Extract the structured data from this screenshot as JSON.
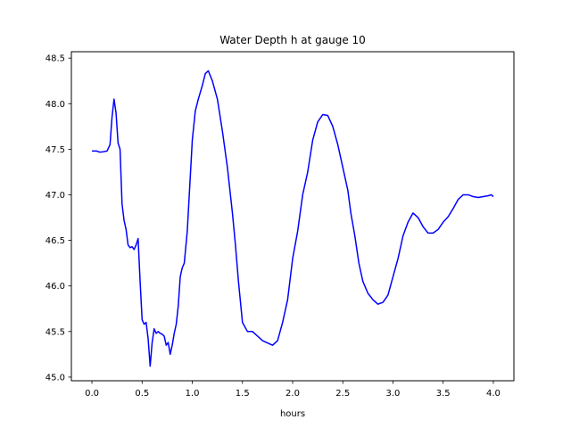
{
  "chart_data": {
    "type": "line",
    "title": "Water Depth h at gauge 10",
    "xlabel": "hours",
    "ylabel": "",
    "xlim": [
      -0.205,
      4.205
    ],
    "ylim": [
      44.96,
      48.57
    ],
    "x_ticks": [
      "0.0",
      "0.5",
      "1.0",
      "1.5",
      "2.0",
      "2.5",
      "3.0",
      "3.5",
      "4.0"
    ],
    "y_ticks": [
      "45.0",
      "45.5",
      "46.0",
      "46.5",
      "47.0",
      "47.5",
      "48.0",
      "48.5"
    ],
    "grid": false,
    "series": [
      {
        "color": "#0000ff",
        "x": [
          0.0,
          0.05,
          0.07,
          0.1,
          0.15,
          0.18,
          0.2,
          0.22,
          0.24,
          0.26,
          0.28,
          0.3,
          0.32,
          0.34,
          0.36,
          0.38,
          0.4,
          0.42,
          0.44,
          0.46,
          0.48,
          0.5,
          0.52,
          0.54,
          0.56,
          0.58,
          0.6,
          0.62,
          0.64,
          0.66,
          0.68,
          0.7,
          0.72,
          0.74,
          0.76,
          0.78,
          0.8,
          0.82,
          0.84,
          0.86,
          0.88,
          0.9,
          0.92,
          0.95,
          0.98,
          1.0,
          1.03,
          1.06,
          1.1,
          1.13,
          1.16,
          1.2,
          1.25,
          1.3,
          1.35,
          1.4,
          1.43,
          1.46,
          1.5,
          1.55,
          1.6,
          1.7,
          1.8,
          1.85,
          1.9,
          1.95,
          2.0,
          2.05,
          2.1,
          2.15,
          2.2,
          2.25,
          2.3,
          2.35,
          2.4,
          2.45,
          2.5,
          2.55,
          2.58,
          2.62,
          2.66,
          2.7,
          2.75,
          2.8,
          2.85,
          2.9,
          2.95,
          3.0,
          3.05,
          3.1,
          3.15,
          3.2,
          3.25,
          3.3,
          3.35,
          3.4,
          3.45,
          3.5,
          3.55,
          3.6,
          3.65,
          3.7,
          3.75,
          3.8,
          3.85,
          3.9,
          3.95,
          3.98,
          4.0
        ],
        "y": [
          47.48,
          47.48,
          47.47,
          47.47,
          47.48,
          47.55,
          47.85,
          48.05,
          47.9,
          47.57,
          47.5,
          46.9,
          46.72,
          46.62,
          46.45,
          46.42,
          46.43,
          46.4,
          46.45,
          46.52,
          46.05,
          45.63,
          45.58,
          45.6,
          45.42,
          45.12,
          45.38,
          45.53,
          45.48,
          45.5,
          45.48,
          45.47,
          45.45,
          45.35,
          45.38,
          45.25,
          45.35,
          45.48,
          45.58,
          45.78,
          46.1,
          46.2,
          46.25,
          46.6,
          47.2,
          47.6,
          47.92,
          48.05,
          48.2,
          48.33,
          48.36,
          48.25,
          48.05,
          47.7,
          47.3,
          46.8,
          46.45,
          46.05,
          45.6,
          45.5,
          45.5,
          45.4,
          45.35,
          45.4,
          45.6,
          45.85,
          46.3,
          46.6,
          47.0,
          47.25,
          47.6,
          47.8,
          47.88,
          47.87,
          47.75,
          47.55,
          47.3,
          47.05,
          46.8,
          46.55,
          46.25,
          46.05,
          45.92,
          45.85,
          45.8,
          45.82,
          45.9,
          46.1,
          46.3,
          46.55,
          46.7,
          46.8,
          46.75,
          46.65,
          46.58,
          46.58,
          46.62,
          46.7,
          46.76,
          46.85,
          46.95,
          47.0,
          47.0,
          46.98,
          46.97,
          46.98,
          46.99,
          47.0,
          46.98
        ]
      }
    ]
  }
}
